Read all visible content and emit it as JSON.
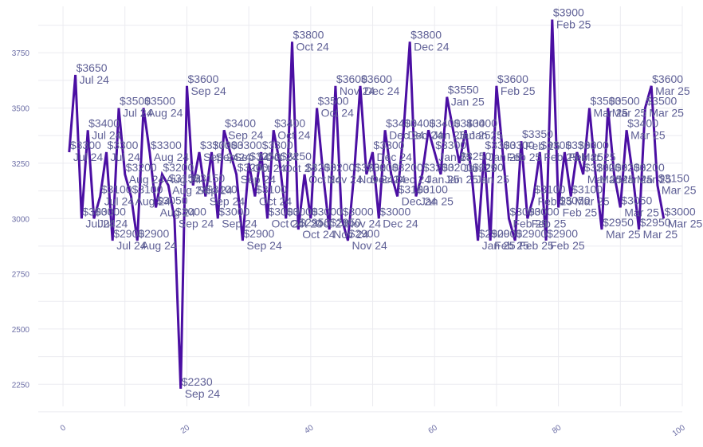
{
  "chart_data": {
    "type": "line",
    "title": "",
    "xlabel": "",
    "ylabel": "",
    "xlim": [
      -4,
      100
    ],
    "ylim": [
      2150,
      3960
    ],
    "x_ticks": [
      0,
      20,
      40,
      60,
      80,
      100
    ],
    "y_ticks": [
      2250,
      2500,
      2750,
      3000,
      3250,
      3500,
      3750
    ],
    "grid": true,
    "line_color": "#4b0fa3",
    "series": [
      {
        "values": [
          3300,
          3650,
          3000,
          3400,
          3000,
          3100,
          3300,
          2900,
          3500,
          3200,
          3100,
          2900,
          3500,
          3300,
          3050,
          3200,
          3150,
          3000,
          2230,
          3600,
          3150,
          3300,
          3100,
          3300,
          3000,
          3400,
          3300,
          3200,
          2900,
          3250,
          3100,
          3300,
          3000,
          3400,
          3250,
          3000,
          3800,
          2950,
          3200,
          3000,
          3500,
          3200,
          2950,
          3600,
          3000,
          2900,
          3200,
          3600,
          3200,
          3300,
          3000,
          3400,
          3200,
          3100,
          3400,
          3800,
          3100,
          3200,
          3400,
          3300,
          3200,
          3550,
          3400,
          3250,
          3400,
          3200,
          2900,
          3300,
          2900,
          3600,
          3300,
          3000,
          2900,
          3350,
          3000,
          3100,
          3300,
          2900,
          3900,
          3050,
          3300,
          3100,
          3300,
          3200,
          3500,
          3200,
          2950,
          3500,
          3200,
          3050,
          3400,
          3200,
          2950,
          3500,
          3600,
          3150,
          3000
        ],
        "labels": [
          {
            "price": "$3300",
            "date": "Jul 24"
          },
          {
            "price": "$3650",
            "date": "Jul 24"
          },
          {
            "price": "$3000",
            "date": "Jul 24"
          },
          {
            "price": "$3400",
            "date": "Jul 24"
          },
          {
            "price": "$3000",
            "date": "Jul 24"
          },
          {
            "price": "$3100",
            "date": "Jul 24"
          },
          {
            "price": "$3300",
            "date": "Jul 24"
          },
          {
            "price": "$2900",
            "date": "Jul 24"
          },
          {
            "price": "$3500",
            "date": "Jul 24"
          },
          {
            "price": "$3200",
            "date": "Aug 24"
          },
          {
            "price": "$3100",
            "date": "Aug 24"
          },
          {
            "price": "$2900",
            "date": "Aug 24"
          },
          {
            "price": "$3500",
            "date": "Aug 24"
          },
          {
            "price": "$3300",
            "date": "Aug 24"
          },
          {
            "price": "$3050",
            "date": "Aug 24"
          },
          {
            "price": "$3200",
            "date": "Aug 24"
          },
          {
            "price": "$3150",
            "date": "Aug 24"
          },
          {
            "price": "$3000",
            "date": "Sep 24"
          },
          {
            "price": "$2230",
            "date": "Sep 24"
          },
          {
            "price": "$3600",
            "date": "Sep 24"
          },
          {
            "price": "$3150",
            "date": "Sep 24"
          },
          {
            "price": "$3300",
            "date": "Sep 24"
          },
          {
            "price": "$3100",
            "date": "Sep 24"
          },
          {
            "price": "$3300",
            "date": "Sep 24"
          },
          {
            "price": "$3000",
            "date": "Sep 24"
          },
          {
            "price": "$3400",
            "date": "Sep 24"
          },
          {
            "price": "$3300",
            "date": "Sep 24"
          },
          {
            "price": "$3200",
            "date": "Sep 24"
          },
          {
            "price": "$2900",
            "date": "Sep 24"
          },
          {
            "price": "$3250",
            "date": "Oct 24"
          },
          {
            "price": "$3100",
            "date": "Oct 24"
          },
          {
            "price": "$3300",
            "date": "Oct 24"
          },
          {
            "price": "$3000",
            "date": "Oct 24"
          },
          {
            "price": "$3400",
            "date": "Oct 24"
          },
          {
            "price": "$3250",
            "date": "Oct 24"
          },
          {
            "price": "$3000",
            "date": "Oct 24"
          },
          {
            "price": "$3800",
            "date": "Oct 24"
          },
          {
            "price": "$2950",
            "date": "Oct 24"
          },
          {
            "price": "$3200",
            "date": "Oct 24"
          },
          {
            "price": "$3000",
            "date": "Oct 24"
          },
          {
            "price": "$3500",
            "date": "Oct 24"
          },
          {
            "price": "$3200",
            "date": "Nov 24"
          },
          {
            "price": "$2950",
            "date": "Nov 24"
          },
          {
            "price": "$3600",
            "date": "Nov 24"
          },
          {
            "price": "$3000",
            "date": "Nov 24"
          },
          {
            "price": "$2900",
            "date": "Nov 24"
          },
          {
            "price": "$3200",
            "date": "Nov 24"
          },
          {
            "price": "$3600",
            "date": "Dec 24"
          },
          {
            "price": "$3200",
            "date": "Dec 24"
          },
          {
            "price": "$3300",
            "date": "Dec 24"
          },
          {
            "price": "$3000",
            "date": "Dec 24"
          },
          {
            "price": "$3400",
            "date": "Dec 24"
          },
          {
            "price": "$3200",
            "date": "Dec 24"
          },
          {
            "price": "$3100",
            "date": "Dec 24"
          },
          {
            "price": "$3400",
            "date": "Dec 24"
          },
          {
            "price": "$3800",
            "date": "Dec 24"
          },
          {
            "price": "$3100",
            "date": "Jan 25"
          },
          {
            "price": "$3200",
            "date": "Jan 25"
          },
          {
            "price": "$3400",
            "date": "Jan 25"
          },
          {
            "price": "$3300",
            "date": "Jan 25"
          },
          {
            "price": "$3200",
            "date": "Jan 25"
          },
          {
            "price": "$3550",
            "date": "Jan 25"
          },
          {
            "price": "$3400",
            "date": "Jan 25"
          },
          {
            "price": "$3250",
            "date": "Jan 25"
          },
          {
            "price": "$3400",
            "date": "Jan 25"
          },
          {
            "price": "$3200",
            "date": "Jan 25"
          },
          {
            "price": "$2900",
            "date": "Jan 25"
          },
          {
            "price": "$3300",
            "date": "Jan 25"
          },
          {
            "price": "$2900",
            "date": "Feb 25"
          },
          {
            "price": "$3600",
            "date": "Feb 25"
          },
          {
            "price": "$3300",
            "date": "Feb 25"
          },
          {
            "price": "$3000",
            "date": "Feb 25"
          },
          {
            "price": "$2900",
            "date": "Feb 25"
          },
          {
            "price": "$3350",
            "date": "Feb 25"
          },
          {
            "price": "$3000",
            "date": "Feb 25"
          },
          {
            "price": "$3100",
            "date": "Feb 25"
          },
          {
            "price": "$3300",
            "date": "Feb 25"
          },
          {
            "price": "$2900",
            "date": "Feb 25"
          },
          {
            "price": "$3900",
            "date": "Feb 25"
          },
          {
            "price": "$3050",
            "date": "Feb 25"
          },
          {
            "price": "$3300",
            "date": "Feb 25"
          },
          {
            "price": "$3100",
            "date": "Mar 25"
          },
          {
            "price": "$3300",
            "date": "Mar 25"
          },
          {
            "price": "$3200",
            "date": "Mar 25"
          },
          {
            "price": "$3500",
            "date": "Mar 25"
          },
          {
            "price": "$3200",
            "date": "Mar 25"
          },
          {
            "price": "$2950",
            "date": "Mar 25"
          },
          {
            "price": "$3500",
            "date": "Mar 25"
          },
          {
            "price": "$3200",
            "date": "Mar 25"
          },
          {
            "price": "$3050",
            "date": "Mar 25"
          },
          {
            "price": "$3400",
            "date": "Mar 25"
          },
          {
            "price": "$3200",
            "date": "Mar 25"
          },
          {
            "price": "$2950",
            "date": "Mar 25"
          },
          {
            "price": "$3500",
            "date": "Mar 25"
          },
          {
            "price": "$3600",
            "date": "Mar 25"
          },
          {
            "price": "$3150",
            "date": "Mar 25"
          },
          {
            "price": "$3000",
            "date": "Mar 25"
          }
        ]
      }
    ]
  }
}
